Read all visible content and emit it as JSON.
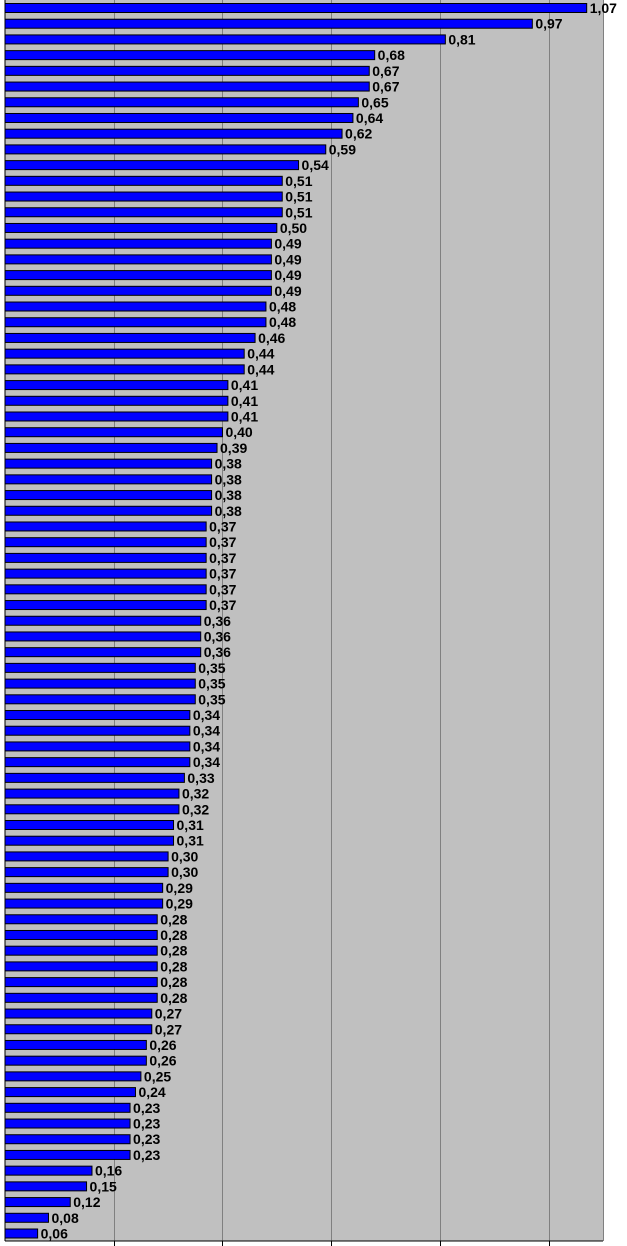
{
  "chart_data": {
    "type": "bar",
    "orientation": "horizontal",
    "values": [
      1.07,
      0.97,
      0.81,
      0.68,
      0.67,
      0.67,
      0.65,
      0.64,
      0.62,
      0.59,
      0.54,
      0.51,
      0.51,
      0.51,
      0.5,
      0.49,
      0.49,
      0.49,
      0.49,
      0.48,
      0.48,
      0.46,
      0.44,
      0.44,
      0.41,
      0.41,
      0.41,
      0.4,
      0.39,
      0.38,
      0.38,
      0.38,
      0.38,
      0.37,
      0.37,
      0.37,
      0.37,
      0.37,
      0.37,
      0.36,
      0.36,
      0.36,
      0.35,
      0.35,
      0.35,
      0.34,
      0.34,
      0.34,
      0.34,
      0.33,
      0.32,
      0.32,
      0.31,
      0.31,
      0.3,
      0.3,
      0.29,
      0.29,
      0.28,
      0.28,
      0.28,
      0.28,
      0.28,
      0.28,
      0.27,
      0.27,
      0.26,
      0.26,
      0.25,
      0.24,
      0.23,
      0.23,
      0.23,
      0.23,
      0.16,
      0.15,
      0.12,
      0.08,
      0.06
    ],
    "labels": [
      "1,07",
      "0,97",
      "0,81",
      "0,68",
      "0,67",
      "0,67",
      "0,65",
      "0,64",
      "0,62",
      "0,59",
      "0,54",
      "0,51",
      "0,51",
      "0,51",
      "0,50",
      "0,49",
      "0,49",
      "0,49",
      "0,49",
      "0,48",
      "0,48",
      "0,46",
      "0,44",
      "0,44",
      "0,41",
      "0,41",
      "0,41",
      "0,40",
      "0,39",
      "0,38",
      "0,38",
      "0,38",
      "0,38",
      "0,37",
      "0,37",
      "0,37",
      "0,37",
      "0,37",
      "0,37",
      "0,36",
      "0,36",
      "0,36",
      "0,35",
      "0,35",
      "0,35",
      "0,34",
      "0,34",
      "0,34",
      "0,34",
      "0,33",
      "0,32",
      "0,32",
      "0,31",
      "0,31",
      "0,30",
      "0,30",
      "0,29",
      "0,29",
      "0,28",
      "0,28",
      "0,28",
      "0,28",
      "0,28",
      "0,28",
      "0,27",
      "0,27",
      "0,26",
      "0,26",
      "0,25",
      "0,24",
      "0,23",
      "0,23",
      "0,23",
      "0,23",
      "0,16",
      "0,15",
      "0,12",
      "0,08",
      "0,06"
    ],
    "xlim": [
      0,
      1.1
    ],
    "grid_step": 0.2,
    "grid": true,
    "colors": {
      "plot_background": "#c0c0c0",
      "bar_fill": "#0000ff",
      "bar_stroke": "#000000",
      "gridline": "#808080",
      "label": "#000000"
    }
  }
}
